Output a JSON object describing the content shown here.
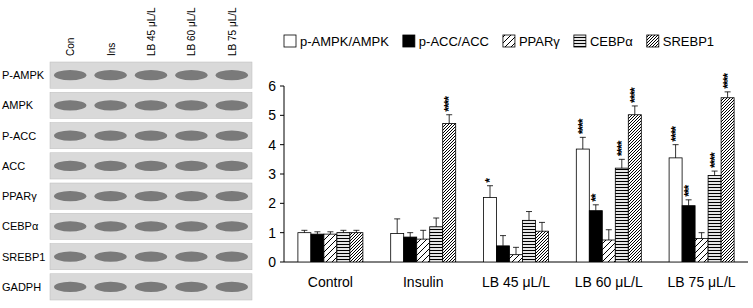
{
  "blot": {
    "rows": [
      "P-AMPK",
      "AMPK",
      "P-ACC",
      "ACC",
      "PPARγ",
      "CEBPα",
      "SREBP1",
      "GADPH"
    ],
    "columns": [
      "Con",
      "Ins",
      "LB 45 μL/L",
      "LB 60 μL/L",
      "LB 75 μL/L"
    ]
  },
  "chart_data": {
    "type": "bar",
    "categories": [
      "Control",
      "Insulin",
      "LB 45 μL/L",
      "LB 60 μL/L",
      "LB 75 μL/L"
    ],
    "series": [
      {
        "name": "p-AMPK/AMPK",
        "color": "#ffffff",
        "values": [
          1.0,
          0.97,
          2.2,
          3.85,
          3.55
        ],
        "errors": [
          0.08,
          0.5,
          0.4,
          0.4,
          0.45
        ],
        "significance": [
          null,
          null,
          "*",
          "****",
          "****"
        ]
      },
      {
        "name": "p-ACC/ACC",
        "color": "#000000",
        "values": [
          0.95,
          0.85,
          0.55,
          1.75,
          1.92
        ],
        "errors": [
          0.08,
          0.15,
          0.35,
          0.2,
          0.2
        ],
        "significance": [
          null,
          null,
          null,
          "**",
          "***"
        ]
      },
      {
        "name": "PPARγ",
        "color": "#ffffff",
        "values": [
          0.95,
          0.78,
          0.25,
          0.75,
          0.8
        ],
        "errors": [
          0.08,
          0.3,
          0.25,
          0.35,
          0.2
        ],
        "significance": [
          null,
          null,
          null,
          null,
          null
        ]
      },
      {
        "name": "CEBPα",
        "color": "#ffffff",
        "values": [
          1.0,
          1.2,
          1.42,
          3.2,
          2.95
        ],
        "errors": [
          0.08,
          0.3,
          0.3,
          0.3,
          0.15
        ],
        "significance": [
          null,
          null,
          null,
          "****",
          "****"
        ]
      },
      {
        "name": "SREBP1",
        "color": "#ffffff",
        "values": [
          1.0,
          4.72,
          1.05,
          5.02,
          5.6
        ],
        "errors": [
          0.08,
          0.3,
          0.3,
          0.3,
          0.2
        ],
        "significance": [
          null,
          "****",
          null,
          "****",
          "****"
        ]
      }
    ],
    "ylim": [
      0,
      6
    ],
    "yticks": [
      0,
      1,
      2,
      3,
      4,
      5,
      6
    ],
    "grid": false,
    "legend": "top"
  }
}
